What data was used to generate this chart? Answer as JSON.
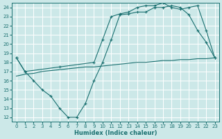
{
  "xlabel": "Humidex (Indice chaleur)",
  "bg_color": "#cce8e8",
  "grid_color": "#ffffff",
  "line_color": "#1a7070",
  "xlim": [
    -0.5,
    23.5
  ],
  "ylim": [
    11.5,
    24.5
  ],
  "yticks": [
    12,
    13,
    14,
    15,
    16,
    17,
    18,
    19,
    20,
    21,
    22,
    23,
    24
  ],
  "xticks": [
    0,
    1,
    2,
    3,
    4,
    5,
    6,
    7,
    8,
    9,
    10,
    11,
    12,
    13,
    14,
    15,
    16,
    17,
    18,
    19,
    20,
    21,
    22,
    23
  ],
  "line1_x": [
    0,
    1,
    2,
    3,
    4,
    5,
    6,
    7,
    8,
    9,
    10,
    11,
    12,
    13,
    14,
    15,
    16,
    17,
    18,
    19,
    20,
    21,
    22,
    23
  ],
  "line1_y": [
    18.5,
    17.0,
    16.0,
    15.0,
    14.3,
    13.0,
    12.0,
    12.0,
    13.5,
    16.0,
    18.0,
    20.5,
    23.2,
    23.3,
    23.5,
    23.5,
    24.0,
    24.0,
    24.2,
    24.0,
    23.2,
    21.5,
    20.2,
    18.5
  ],
  "line2_x": [
    0,
    1,
    5,
    9,
    10,
    11,
    12,
    13,
    14,
    15,
    16,
    17,
    18,
    19,
    20,
    21,
    22,
    23
  ],
  "line2_y": [
    18.5,
    17.0,
    17.5,
    18.0,
    20.5,
    23.0,
    23.3,
    23.5,
    24.0,
    24.2,
    24.2,
    24.5,
    24.0,
    23.8,
    24.0,
    24.2,
    21.5,
    18.5
  ],
  "line3_x": [
    0,
    1,
    2,
    3,
    4,
    5,
    6,
    7,
    8,
    9,
    10,
    11,
    12,
    13,
    14,
    15,
    16,
    17,
    18,
    19,
    20,
    21,
    22,
    23
  ],
  "line3_y": [
    16.5,
    16.7,
    16.8,
    17.0,
    17.1,
    17.2,
    17.3,
    17.4,
    17.5,
    17.5,
    17.6,
    17.7,
    17.8,
    17.9,
    18.0,
    18.0,
    18.1,
    18.2,
    18.2,
    18.3,
    18.3,
    18.4,
    18.4,
    18.5
  ]
}
